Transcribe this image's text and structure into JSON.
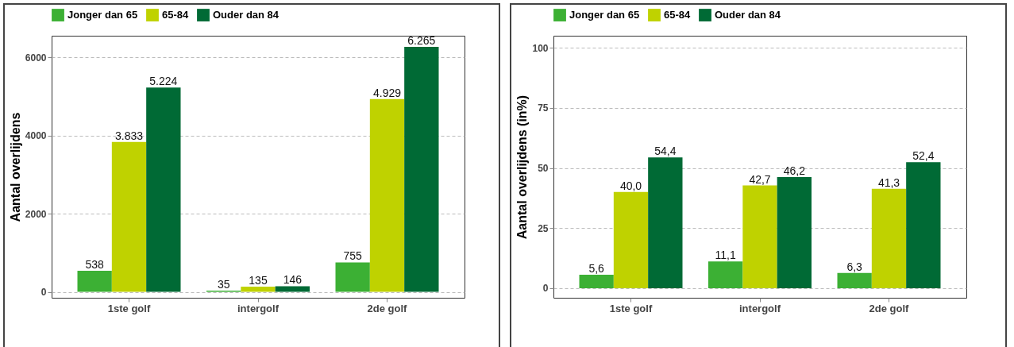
{
  "chart_data": [
    {
      "type": "bar",
      "ylabel": "Aantal overlijdens",
      "categories": [
        "1ste golf",
        "intergolf",
        "2de golf"
      ],
      "ylim": [
        -150,
        6550
      ],
      "yticks": [
        0,
        2000,
        4000,
        6000
      ],
      "grid": "y",
      "legend": "top",
      "series": [
        {
          "name": "Jonger dan 65",
          "color": "#3cb034",
          "values": [
            538,
            35,
            755
          ],
          "value_labels": [
            "538",
            "35",
            "755"
          ]
        },
        {
          "name": "65-84",
          "color": "#bfd200",
          "values": [
            3833,
            135,
            4929
          ],
          "value_labels": [
            "3.833",
            "135",
            "4.929"
          ]
        },
        {
          "name": "Ouder dan 84",
          "color": "#006a35",
          "values": [
            5224,
            146,
            6265
          ],
          "value_labels": [
            "5.224",
            "146",
            "6.265"
          ]
        }
      ]
    },
    {
      "type": "bar",
      "ylabel": "Aantal overlijdens (in%)",
      "categories": [
        "1ste golf",
        "intergolf",
        "2de golf"
      ],
      "ylim": [
        -4,
        105
      ],
      "yticks": [
        0,
        25,
        50,
        75,
        100
      ],
      "grid": "y",
      "legend": "top",
      "series": [
        {
          "name": "Jonger dan 65",
          "color": "#3cb034",
          "values": [
            5.6,
            11.1,
            6.3
          ],
          "value_labels": [
            "5,6",
            "11,1",
            "6,3"
          ]
        },
        {
          "name": "65-84",
          "color": "#bfd200",
          "values": [
            40.0,
            42.7,
            41.3
          ],
          "value_labels": [
            "40,0",
            "42,7",
            "41,3"
          ]
        },
        {
          "name": "Ouder dan 84",
          "color": "#006a35",
          "values": [
            54.4,
            46.2,
            52.4
          ],
          "value_labels": [
            "54,4",
            "46,2",
            "52,4"
          ]
        }
      ]
    }
  ]
}
